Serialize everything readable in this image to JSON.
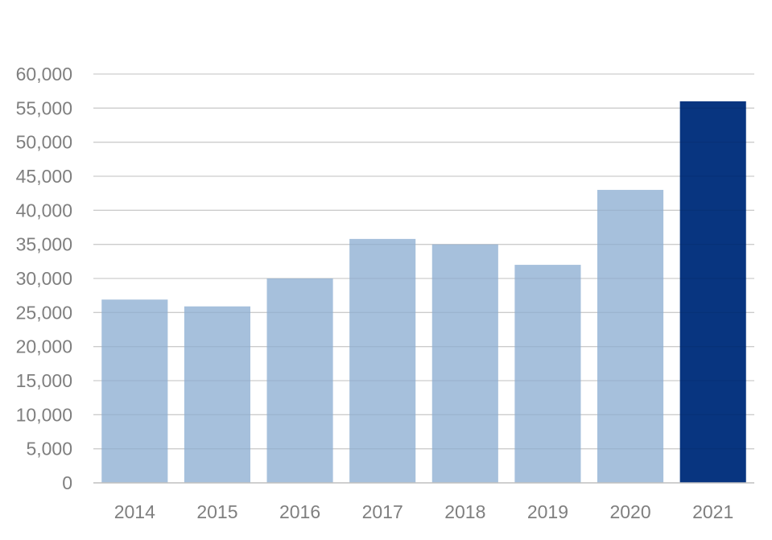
{
  "chart_data": {
    "type": "bar",
    "title": "",
    "xlabel": "",
    "ylabel": "",
    "categories": [
      "2014",
      "2015",
      "2016",
      "2017",
      "2018",
      "2019",
      "2020",
      "2021"
    ],
    "values": [
      26900,
      25900,
      30000,
      35800,
      35000,
      32000,
      43000,
      56000
    ],
    "ylim": [
      0,
      60000
    ],
    "ytick_step": 5000,
    "ytick_labels": [
      "0",
      "5,000",
      "10,000",
      "15,000",
      "20,000",
      "25,000",
      "30,000",
      "35,000",
      "40,000",
      "45,000",
      "50,000",
      "55,000",
      "60,000"
    ],
    "grid": true,
    "legend": "none",
    "colors": {
      "bar": "#a6c0dc",
      "highlight_bar": "#083580",
      "gridline": "#d9d9d9",
      "axis_line": "#bfbfbf",
      "text": "#7f7f7f"
    },
    "highlight_category": "2021"
  }
}
